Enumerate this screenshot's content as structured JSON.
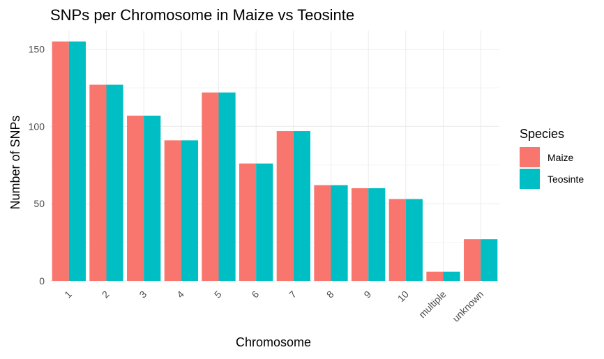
{
  "chart_data": {
    "type": "bar",
    "title": "SNPs per Chromosome in Maize vs Teosinte",
    "xlabel": "Chromosome",
    "ylabel": "Number of SNPs",
    "categories": [
      "1",
      "2",
      "3",
      "4",
      "5",
      "6",
      "7",
      "8",
      "9",
      "10",
      "multiple",
      "unknown"
    ],
    "series": [
      {
        "name": "Maize",
        "color": "#F8766D",
        "values": [
          155,
          127,
          107,
          91,
          122,
          76,
          97,
          62,
          60,
          53,
          6,
          27
        ]
      },
      {
        "name": "Teosinte",
        "color": "#00BFC4",
        "values": [
          155,
          127,
          107,
          91,
          122,
          76,
          97,
          62,
          60,
          53,
          6,
          27
        ]
      }
    ],
    "ylim": [
      0,
      162
    ],
    "yticks": [
      0,
      50,
      100,
      150
    ],
    "grid": true,
    "legend": {
      "title": "Species",
      "position": "right"
    }
  }
}
